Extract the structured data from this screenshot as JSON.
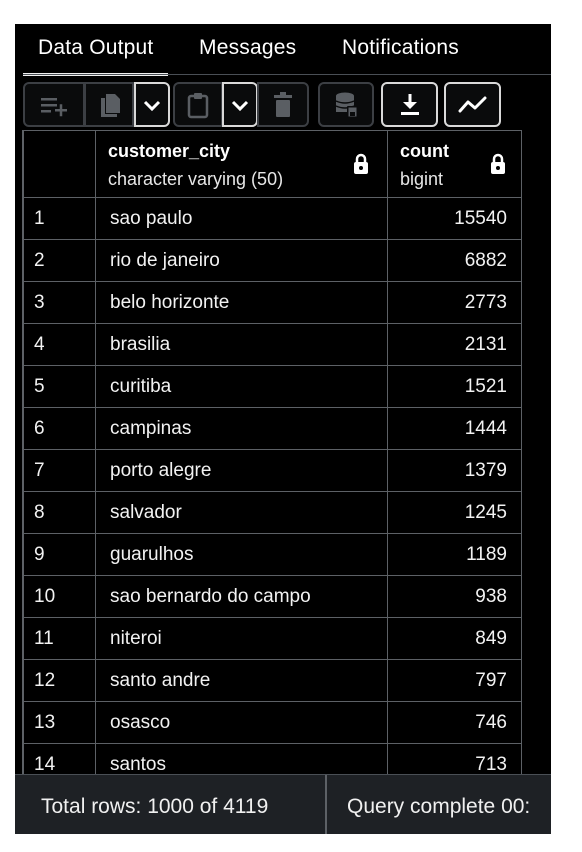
{
  "tabs": [
    {
      "label": "Data Output",
      "active": true
    },
    {
      "label": "Messages",
      "active": false
    },
    {
      "label": "Notifications",
      "active": false
    }
  ],
  "toolbar": {
    "buttons": [
      "add-row-icon",
      "copy-icon",
      "copy-dropdown-chevron-icon",
      "paste-icon",
      "paste-dropdown-chevron-icon",
      "delete-icon",
      "save-data-icon",
      "download-icon",
      "graph-visualiser-icon"
    ]
  },
  "columns": [
    {
      "name": "customer_city",
      "type": "character varying (50)",
      "locked": true
    },
    {
      "name": "count",
      "type": "bigint",
      "locked": true
    }
  ],
  "rows": [
    {
      "num": "1",
      "city": "sao paulo",
      "count": "15540"
    },
    {
      "num": "2",
      "city": "rio de janeiro",
      "count": "6882"
    },
    {
      "num": "3",
      "city": "belo horizonte",
      "count": "2773"
    },
    {
      "num": "4",
      "city": "brasilia",
      "count": "2131"
    },
    {
      "num": "5",
      "city": "curitiba",
      "count": "1521"
    },
    {
      "num": "6",
      "city": "campinas",
      "count": "1444"
    },
    {
      "num": "7",
      "city": "porto alegre",
      "count": "1379"
    },
    {
      "num": "8",
      "city": "salvador",
      "count": "1245"
    },
    {
      "num": "9",
      "city": "guarulhos",
      "count": "1189"
    },
    {
      "num": "10",
      "city": "sao bernardo do campo",
      "count": "938"
    },
    {
      "num": "11",
      "city": "niteroi",
      "count": "849"
    },
    {
      "num": "12",
      "city": "santo andre",
      "count": "797"
    },
    {
      "num": "13",
      "city": "osasco",
      "count": "746"
    },
    {
      "num": "14",
      "city": "santos",
      "count": "713"
    }
  ],
  "status": {
    "total_rows": "Total rows: 1000 of 4119",
    "query_status": "Query complete 00:"
  },
  "colors": {
    "background": "#000000",
    "border": "#5d6166",
    "text": "#f2f2f2",
    "status_bar": "#1e2125"
  }
}
